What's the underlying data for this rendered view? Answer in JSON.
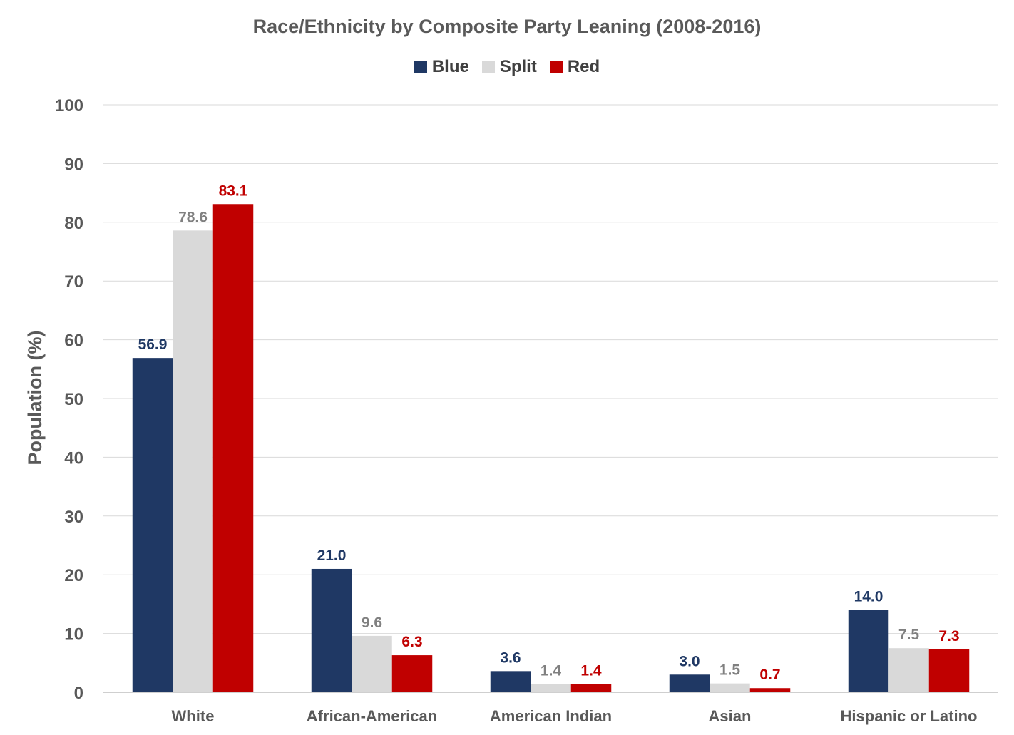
{
  "chart_data": {
    "type": "bar",
    "title": "Race/Ethnicity by Composite Party Leaning (2008-2016)",
    "xlabel": "",
    "ylabel": "Population (%)",
    "ylim": [
      0,
      100
    ],
    "yticks": [
      0,
      10,
      20,
      30,
      40,
      50,
      60,
      70,
      80,
      90,
      100
    ],
    "grid": true,
    "legend_position": "top",
    "categories": [
      "White",
      "African-American",
      "American Indian",
      "Asian",
      "Hispanic or Latino"
    ],
    "series": [
      {
        "name": "Blue",
        "color": "#1F3864",
        "label_color": "#1F3864",
        "values": [
          56.9,
          21.0,
          3.6,
          3.0,
          14.0
        ]
      },
      {
        "name": "Split",
        "color": "#D9D9D9",
        "label_color": "#808080",
        "values": [
          78.6,
          9.6,
          1.4,
          1.5,
          7.5
        ]
      },
      {
        "name": "Red",
        "color": "#C00000",
        "label_color": "#C00000",
        "values": [
          83.1,
          6.3,
          1.4,
          0.7,
          7.3
        ]
      }
    ]
  }
}
